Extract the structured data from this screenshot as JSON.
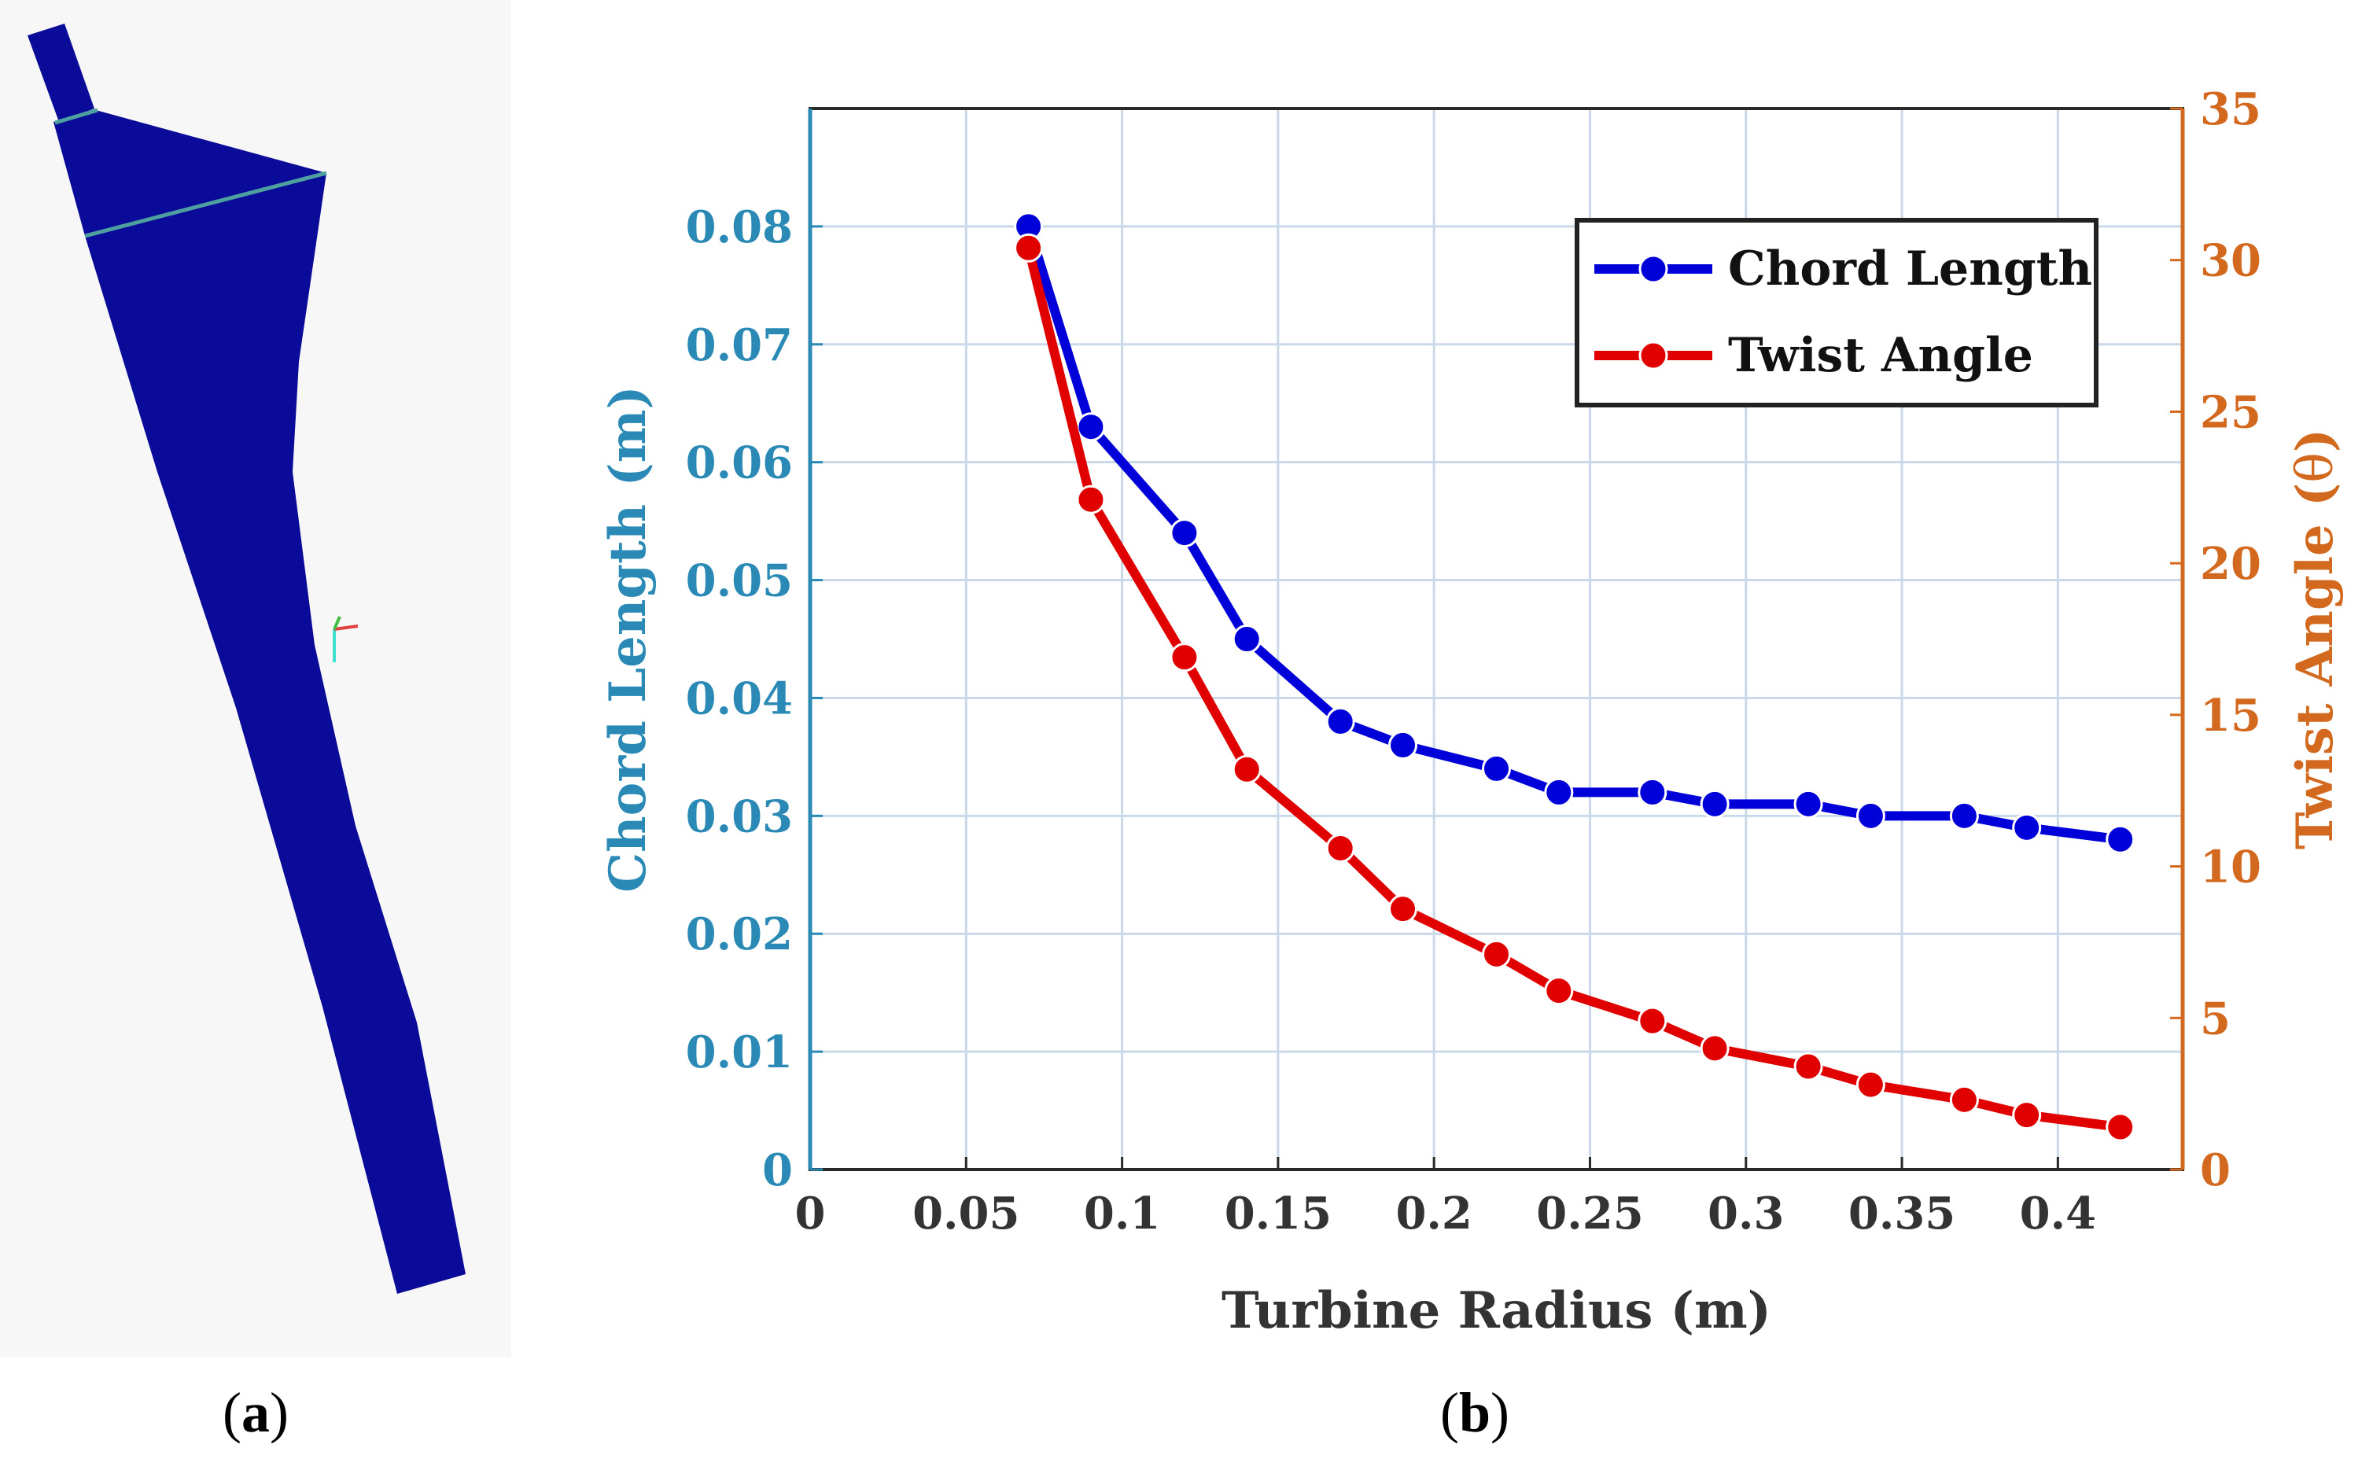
{
  "panel_a": {
    "label_prefix": "(",
    "label_letter": "a",
    "label_suffix": ")",
    "blade_color": "#0b0b99",
    "edge_color": "#4ea0a0"
  },
  "panel_b": {
    "label_prefix": "(",
    "label_letter": "b",
    "label_suffix": ")"
  },
  "chart_data": {
    "type": "line",
    "xlabel": "Turbine Radius (m)",
    "ylabel": "Chord Length (m)",
    "y2label": "Twist Angle (",
    "y2label_symbol": "θ",
    "y2label_suffix": ")",
    "xlim": [
      0,
      0.44
    ],
    "ylim": [
      0,
      0.09
    ],
    "y2lim": [
      0,
      35
    ],
    "xticks": [
      0,
      0.05,
      0.1,
      0.15,
      0.2,
      0.25,
      0.3,
      0.35,
      0.4
    ],
    "xtick_labels": [
      "0",
      "0.05",
      "0.1",
      "0.15",
      "0.2",
      "0.25",
      "0.3",
      "0.35",
      "0.4"
    ],
    "yticks": [
      0,
      0.01,
      0.02,
      0.03,
      0.04,
      0.05,
      0.06,
      0.07,
      0.08
    ],
    "ytick_labels": [
      "0",
      "0.01",
      "0.02",
      "0.03",
      "0.04",
      "0.05",
      "0.06",
      "0.07",
      "0.08"
    ],
    "y2ticks": [
      0,
      5,
      10,
      15,
      20,
      25,
      30,
      35
    ],
    "y2tick_labels": [
      "0",
      "5",
      "10",
      "15",
      "20",
      "25",
      "30",
      "35"
    ],
    "grid": true,
    "legend_position": "top-right",
    "colors": {
      "left_axis": "#2a8ab5",
      "right_axis": "#d2691e",
      "grid": "#c9d9ea"
    },
    "series": [
      {
        "name": "Chord Length",
        "axis": "left",
        "color": "#0000d9",
        "x": [
          0.07,
          0.09,
          0.12,
          0.14,
          0.17,
          0.19,
          0.22,
          0.24,
          0.27,
          0.29,
          0.32,
          0.34,
          0.37,
          0.39,
          0.42
        ],
        "values": [
          0.08,
          0.063,
          0.054,
          0.045,
          0.038,
          0.036,
          0.034,
          0.032,
          0.032,
          0.031,
          0.031,
          0.03,
          0.03,
          0.029,
          0.028
        ]
      },
      {
        "name": "Twist Angle",
        "axis": "right",
        "color": "#e00000",
        "x": [
          0.07,
          0.09,
          0.12,
          0.14,
          0.17,
          0.19,
          0.22,
          0.24,
          0.27,
          0.29,
          0.32,
          0.34,
          0.37,
          0.39,
          0.42
        ],
        "values": [
          30.4,
          22.1,
          16.9,
          13.2,
          10.6,
          8.6,
          7.1,
          5.9,
          4.9,
          4.0,
          3.4,
          2.8,
          2.3,
          1.8,
          1.4
        ]
      }
    ]
  }
}
